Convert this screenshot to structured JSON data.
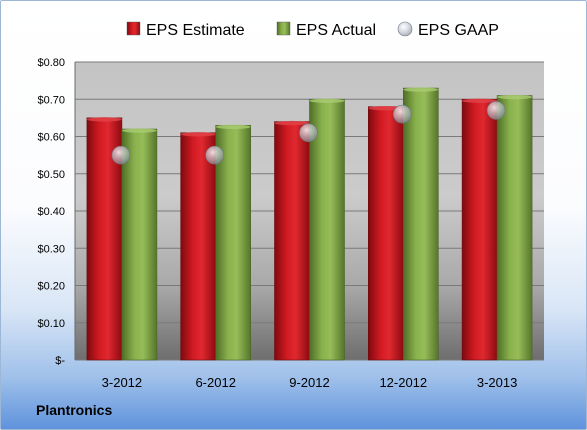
{
  "company": "Plantronics",
  "colors": {
    "estimate": "#c9131b",
    "actual": "#7fa845",
    "gaap": "#c0c6cf"
  },
  "chart_data": {
    "type": "bar",
    "categories": [
      "3-2012",
      "6-2012",
      "9-2012",
      "12-2012",
      "3-2013"
    ],
    "series": [
      {
        "name": "EPS Estimate",
        "values": [
          0.65,
          0.61,
          0.64,
          0.68,
          0.7
        ],
        "mark": "bar"
      },
      {
        "name": "EPS Actual",
        "values": [
          0.62,
          0.63,
          0.7,
          0.73,
          0.71
        ],
        "mark": "bar"
      },
      {
        "name": "EPS GAAP",
        "values": [
          0.55,
          0.55,
          0.61,
          0.66,
          0.67
        ],
        "mark": "marker"
      }
    ],
    "ylim": [
      0,
      0.8
    ],
    "yticks": [
      0,
      0.1,
      0.2,
      0.3,
      0.4,
      0.5,
      0.6,
      0.7,
      0.8
    ],
    "ytick_labels": [
      "$-",
      "$0.10",
      "$0.20",
      "$0.30",
      "$0.40",
      "$0.50",
      "$0.60",
      "$0.70",
      "$0.80"
    ],
    "legend_position": "top",
    "grid": true
  }
}
